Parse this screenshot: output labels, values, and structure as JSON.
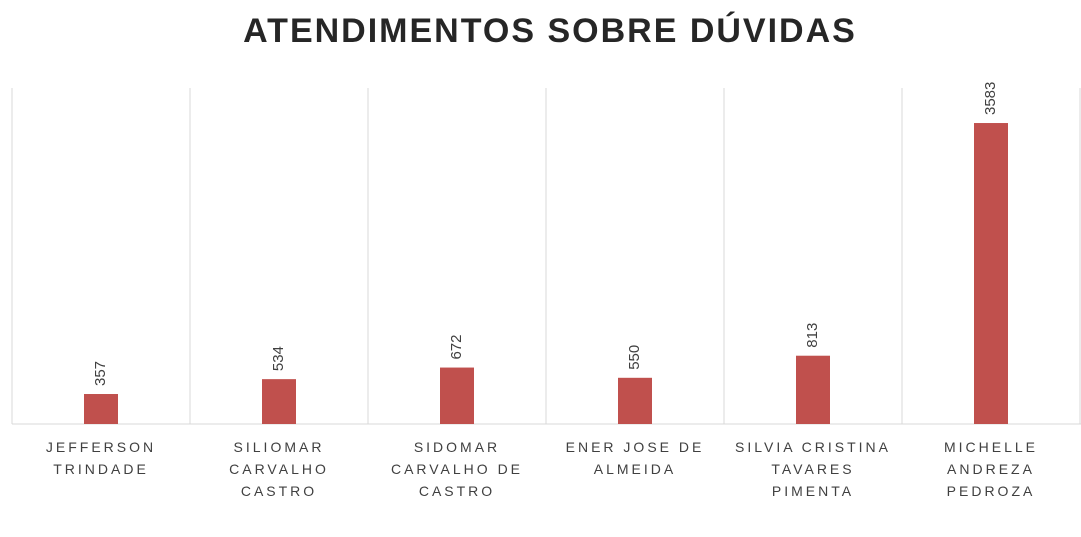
{
  "chart_data": {
    "type": "bar",
    "title": "ATENDIMENTOS SOBRE DÚVIDAS",
    "categories": [
      "JEFFERSON TRINDADE",
      "SILIOMAR CARVALHO CASTRO",
      "SIDOMAR CARVALHO DE CASTRO",
      "ENER JOSE DE ALMEIDA",
      "SILVIA CRISTINA TAVARES PIMENTA",
      "MICHELLE ANDREZA PEDROZA"
    ],
    "values": [
      357,
      534,
      672,
      550,
      813,
      3583
    ],
    "color": "#c0504d",
    "ylim": [
      0,
      4000
    ]
  }
}
